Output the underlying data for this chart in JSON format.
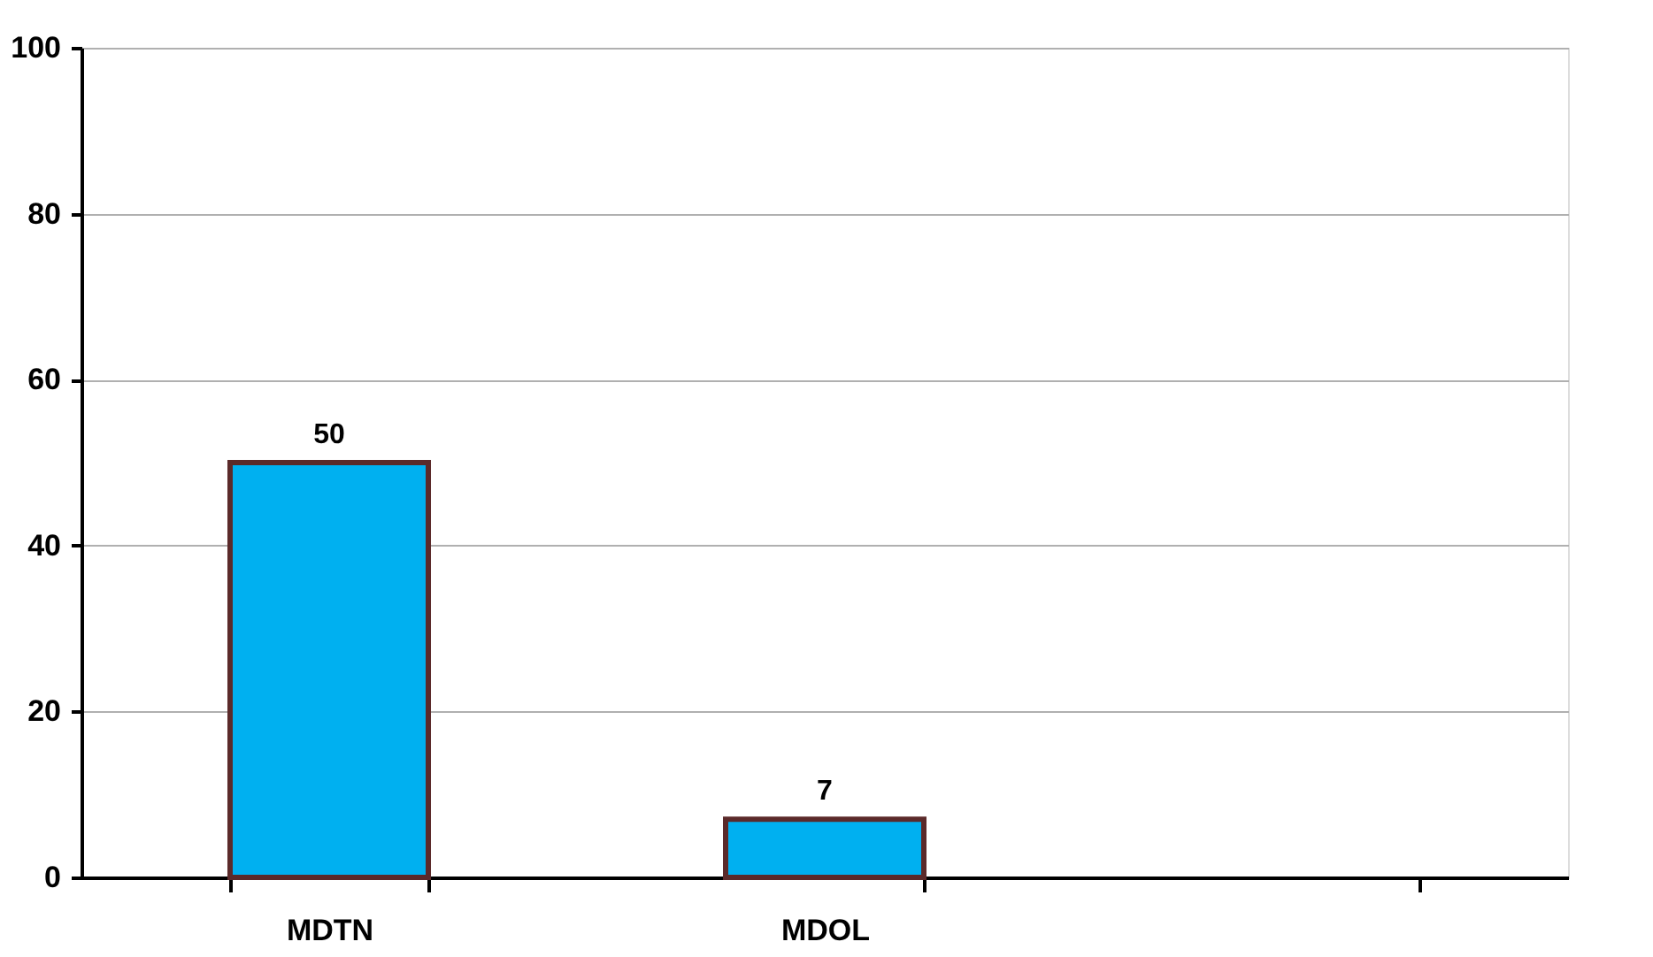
{
  "chart_data": {
    "type": "bar",
    "categories": [
      "MDTN",
      "MDOL",
      null
    ],
    "values": [
      50,
      7,
      null
    ],
    "color": "#00b0f0",
    "ylim": [
      0,
      100
    ],
    "yticks": [
      0,
      20,
      40,
      60,
      80,
      100
    ],
    "grid": "y",
    "data_labels": true
  }
}
